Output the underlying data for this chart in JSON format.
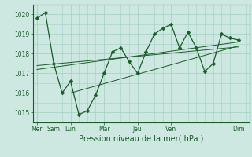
{
  "xlabel": "Pression niveau de la mer( hPa )",
  "ylim": [
    1014.5,
    1020.5
  ],
  "yticks": [
    1015,
    1016,
    1017,
    1018,
    1019,
    1020
  ],
  "day_labels": [
    "Mer",
    "Sam",
    "Lun",
    "Mar",
    "Jeu",
    "Ven",
    "Dim"
  ],
  "day_positions": [
    0,
    1.2,
    2.4,
    4.8,
    7.2,
    9.6,
    14.4
  ],
  "xlim": [
    -0.3,
    15.2
  ],
  "background_color": "#cce8e0",
  "grid_color": "#a0cec4",
  "line_color": "#1a5c2a",
  "data_x": [
    0,
    0.6,
    1.2,
    1.8,
    2.4,
    3.0,
    3.6,
    4.2,
    4.8,
    5.4,
    6.0,
    6.6,
    7.2,
    7.8,
    8.4,
    9.0,
    9.6,
    10.2,
    10.8,
    11.4,
    12.0,
    12.6,
    13.2,
    13.8,
    14.4
  ],
  "data_y": [
    1019.8,
    1020.1,
    1017.5,
    1016.0,
    1016.6,
    1014.9,
    1015.1,
    1015.9,
    1017.0,
    1018.1,
    1018.3,
    1017.6,
    1017.0,
    1018.1,
    1019.0,
    1019.3,
    1019.5,
    1018.3,
    1019.1,
    1018.3,
    1017.1,
    1017.5,
    1019.0,
    1018.8,
    1018.7
  ],
  "trend1_x": [
    0,
    14.4
  ],
  "trend1_y": [
    1017.4,
    1018.35
  ],
  "trend2_x": [
    0,
    14.4
  ],
  "trend2_y": [
    1017.2,
    1018.6
  ],
  "trend3_x": [
    2.4,
    14.4
  ],
  "trend3_y": [
    1016.0,
    1018.4
  ],
  "ylabel_fontsize": 5.5,
  "xlabel_fontsize": 7,
  "tick_labelsize": 5.5,
  "marker_size": 2.5
}
